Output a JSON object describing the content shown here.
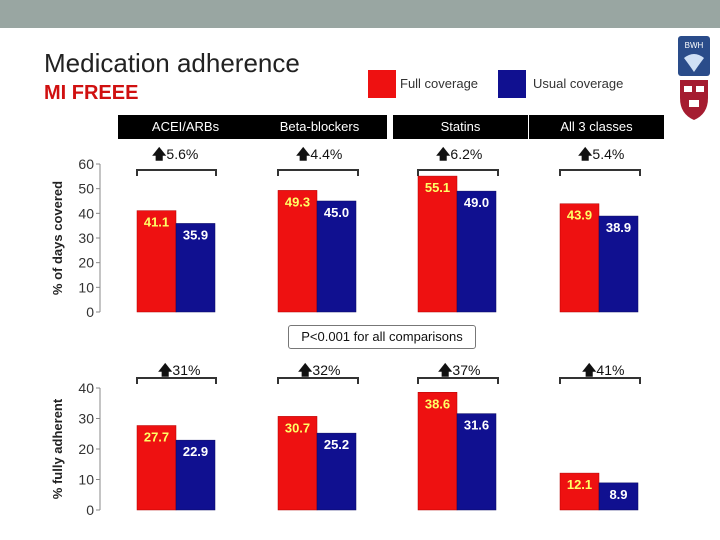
{
  "header": {
    "title": "Medication adherence",
    "subtitle": "MI FREEE"
  },
  "legend": {
    "full": {
      "label": "Full coverage",
      "color": "#ee1111"
    },
    "usual": {
      "label": "Usual coverage",
      "color": "#101090"
    }
  },
  "categories": [
    "ACEI/ARBs",
    "Beta-blockers",
    "Statins",
    "All 3 classes"
  ],
  "pct_days_increase": [
    "5.6%",
    "4.4%",
    "6.2%",
    "5.4%"
  ],
  "pct_adherent_increase": [
    "31%",
    "32%",
    "37%",
    "41%"
  ],
  "pvalue_note": "P<0.001 for all comparisons",
  "logo_text": "BWH",
  "arrow_glyph": "🡅",
  "chart_data": [
    {
      "type": "bar",
      "ylabel": "% of days covered",
      "ylim": [
        0,
        60
      ],
      "yticks": [
        0,
        10,
        20,
        30,
        40,
        50,
        60
      ],
      "categories": [
        "ACEI/ARBs",
        "Beta-blockers",
        "Statins",
        "All 3 classes"
      ],
      "series": [
        {
          "name": "Full coverage",
          "color": "#ee1111",
          "values": [
            41.1,
            49.3,
            55.1,
            43.9
          ],
          "labels": [
            "41.1",
            "49.3",
            "55.1",
            "43.9"
          ]
        },
        {
          "name": "Usual coverage",
          "color": "#101090",
          "values": [
            35.9,
            45.0,
            49.0,
            38.9
          ],
          "labels": [
            "35.9",
            "45.0",
            "49.0",
            "38.9"
          ]
        }
      ]
    },
    {
      "type": "bar",
      "ylabel": "% fully adherent",
      "ylim": [
        0,
        40
      ],
      "yticks": [
        0,
        10,
        20,
        30,
        40
      ],
      "categories": [
        "ACEI/ARBs",
        "Beta-blockers",
        "Statins",
        "All 3 classes"
      ],
      "series": [
        {
          "name": "Full coverage",
          "color": "#ee1111",
          "values": [
            27.7,
            30.7,
            38.6,
            12.1
          ],
          "labels": [
            "27.7",
            "30.7",
            "38.6",
            "12.1"
          ]
        },
        {
          "name": "Usual coverage",
          "color": "#101090",
          "values": [
            22.9,
            25.2,
            31.6,
            8.9
          ],
          "labels": [
            "22.9",
            "25.2",
            "31.6",
            "8.9"
          ]
        }
      ]
    }
  ]
}
